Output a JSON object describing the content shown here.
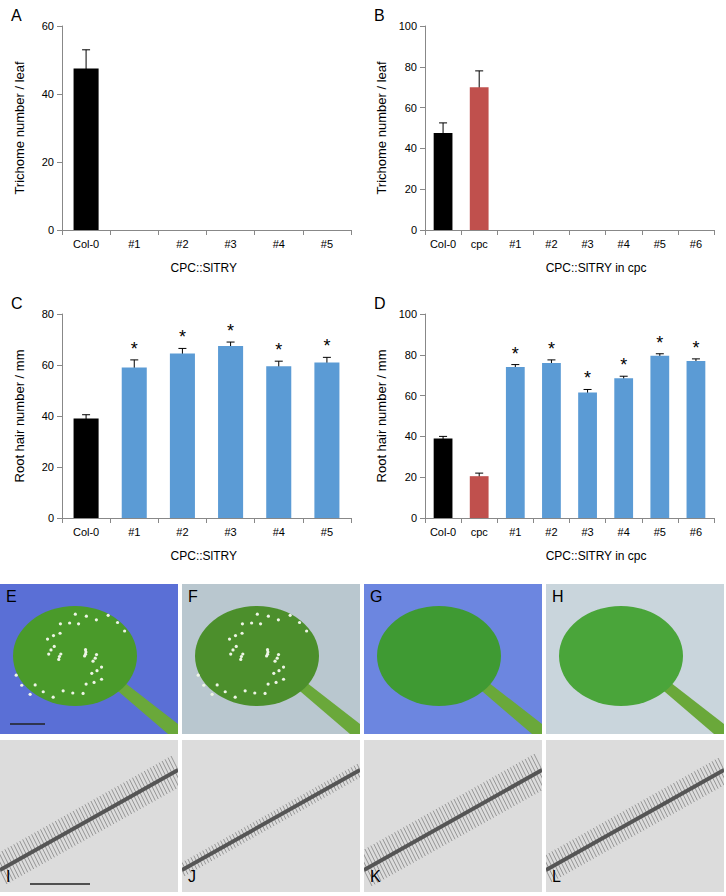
{
  "chart_data": [
    {
      "type": "bar",
      "title": "A",
      "y_label": "Trichome number / leaf",
      "x_group_label": "CPC::SlTRY",
      "categories": [
        "Col-0",
        "#1",
        "#2",
        "#3",
        "#4",
        "#5"
      ],
      "values": [
        47.5,
        0,
        0,
        0,
        0,
        0
      ],
      "errors": [
        5.5,
        0,
        0,
        0,
        0,
        0
      ],
      "significance": [
        null,
        null,
        null,
        null,
        null,
        null
      ],
      "colors": [
        "#000000",
        "#5b9bd5",
        "#5b9bd5",
        "#5b9bd5",
        "#5b9bd5",
        "#5b9bd5"
      ],
      "ylim": [
        0,
        60
      ],
      "yticks": [
        0,
        20,
        40,
        60
      ],
      "grid": false
    },
    {
      "type": "bar",
      "title": "B",
      "y_label": "Trichome number / leaf",
      "x_group_label": "CPC::SlTRY in cpc",
      "categories": [
        "Col-0",
        "cpc",
        "#1",
        "#2",
        "#3",
        "#4",
        "#5",
        "#6"
      ],
      "values": [
        47.5,
        70,
        0,
        0,
        0,
        0,
        0,
        0
      ],
      "errors": [
        5,
        8,
        0,
        0,
        0,
        0,
        0,
        0
      ],
      "significance": [
        null,
        null,
        null,
        null,
        null,
        null,
        null,
        null
      ],
      "colors": [
        "#000000",
        "#c0504d",
        "#5b9bd5",
        "#5b9bd5",
        "#5b9bd5",
        "#5b9bd5",
        "#5b9bd5",
        "#5b9bd5"
      ],
      "ylim": [
        0,
        100
      ],
      "yticks": [
        0,
        20,
        40,
        60,
        80,
        100
      ],
      "grid": false
    },
    {
      "type": "bar",
      "title": "C",
      "y_label": "Root hair number / mm",
      "x_group_label": "CPC::SlTRY",
      "categories": [
        "Col-0",
        "#1",
        "#2",
        "#3",
        "#4",
        "#5"
      ],
      "values": [
        39,
        59,
        64.5,
        67.5,
        59.5,
        61
      ],
      "errors": [
        1.5,
        3,
        2,
        1.5,
        2,
        2
      ],
      "significance": [
        null,
        "*",
        "*",
        "*",
        "*",
        "*"
      ],
      "colors": [
        "#000000",
        "#5b9bd5",
        "#5b9bd5",
        "#5b9bd5",
        "#5b9bd5",
        "#5b9bd5"
      ],
      "ylim": [
        0,
        80
      ],
      "yticks": [
        0,
        20,
        40,
        60,
        80
      ],
      "grid": false
    },
    {
      "type": "bar",
      "title": "D",
      "y_label": "Root hair number / mm",
      "x_group_label": "CPC::SlTRY in cpc",
      "categories": [
        "Col-0",
        "cpc",
        "#1",
        "#2",
        "#3",
        "#4",
        "#5",
        "#6"
      ],
      "values": [
        39,
        20.5,
        74,
        76,
        61.5,
        68.5,
        79.5,
        77
      ],
      "errors": [
        1,
        1.5,
        1.2,
        1.5,
        1.5,
        1,
        1,
        1
      ],
      "significance": [
        null,
        null,
        "*",
        "*",
        "*",
        "*",
        "*",
        "*"
      ],
      "colors": [
        "#000000",
        "#c0504d",
        "#5b9bd5",
        "#5b9bd5",
        "#5b9bd5",
        "#5b9bd5",
        "#5b9bd5",
        "#5b9bd5"
      ],
      "ylim": [
        0,
        100
      ],
      "yticks": [
        0,
        20,
        40,
        60,
        80,
        100
      ],
      "grid": false
    }
  ],
  "photos": {
    "leaf_panels": [
      "E",
      "F",
      "G",
      "H"
    ],
    "root_panels": [
      "I",
      "J",
      "K",
      "L"
    ]
  }
}
